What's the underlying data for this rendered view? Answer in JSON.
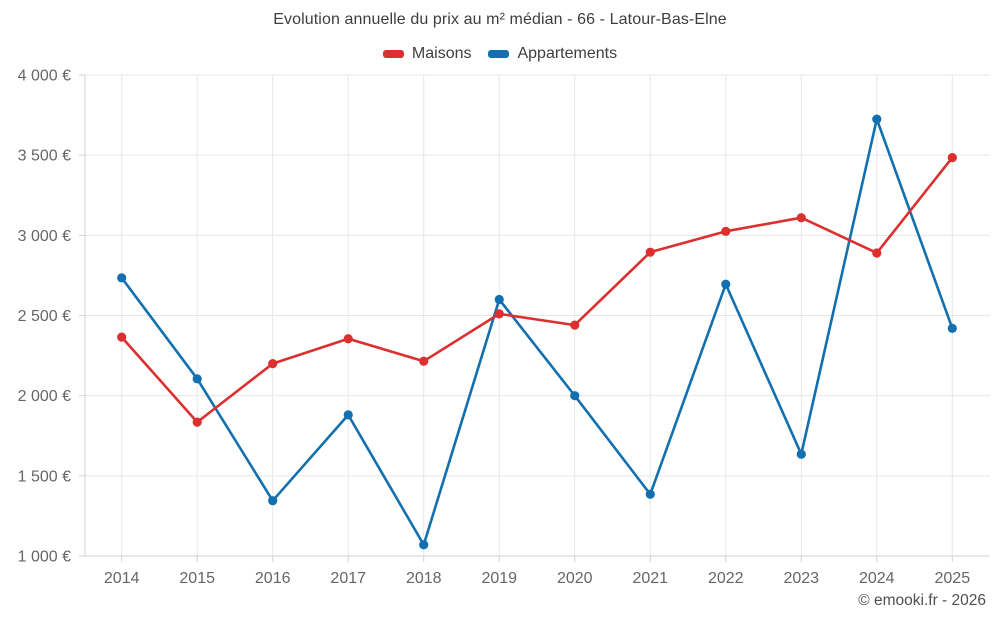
{
  "chart_data": {
    "type": "line",
    "title": "Evolution annuelle du prix au m² médian - 66 - Latour-Bas-Elne",
    "xlabel": "",
    "ylabel": "",
    "categories": [
      "2014",
      "2015",
      "2016",
      "2017",
      "2018",
      "2019",
      "2020",
      "2021",
      "2022",
      "2023",
      "2024",
      "2025"
    ],
    "series": [
      {
        "name": "Maisons",
        "color": "#dc2f2f",
        "values": [
          2365,
          1835,
          2200,
          2355,
          2215,
          2510,
          2440,
          2895,
          3025,
          3110,
          2890,
          3485
        ]
      },
      {
        "name": "Appartements",
        "color": "#1270ae",
        "values": [
          2735,
          2105,
          1345,
          1880,
          1070,
          2600,
          2000,
          1385,
          2695,
          1635,
          3725,
          2420
        ]
      }
    ],
    "ylim": [
      1000,
      4000
    ],
    "y_ticks": [
      1000,
      1500,
      2000,
      2500,
      3000,
      3500,
      4000
    ],
    "y_tick_labels": [
      "1 000 €",
      "1 500 €",
      "2 000 €",
      "2 500 €",
      "3 000 €",
      "3 500 €",
      "4 000 €"
    ],
    "grid": true,
    "legend_position": "top",
    "style": {
      "grid_color": "#e7e7e7",
      "axis_color": "#d2d2d2",
      "tick_label_color": "#666666",
      "title_color": "#3e3e3e"
    }
  },
  "footer": {
    "text": "© emooki.fr - 2026"
  }
}
